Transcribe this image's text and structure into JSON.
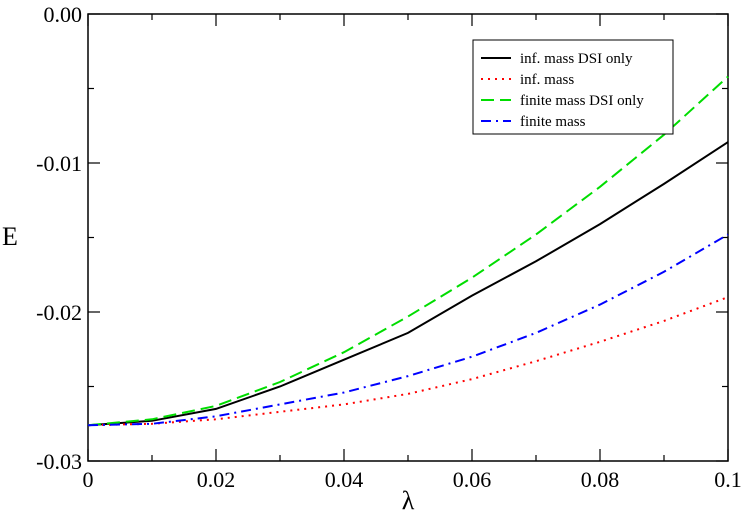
{
  "chart_data": {
    "type": "line",
    "xlabel": "λ",
    "ylabel": "E",
    "xlim": [
      0,
      0.1
    ],
    "ylim": [
      -0.03,
      0.0
    ],
    "x_ticks": [
      0,
      0.02,
      0.04,
      0.06,
      0.08,
      0.1
    ],
    "x_tick_labels": [
      "0",
      "0.02",
      "0.04",
      "0.06",
      "0.08",
      "0.1"
    ],
    "y_ticks": [
      -0.03,
      -0.02,
      -0.01,
      0.0
    ],
    "y_tick_labels": [
      "-0.03",
      "-0.02",
      "-0.01",
      "0.00"
    ],
    "grid": false,
    "legend_position": "top-right",
    "series": [
      {
        "name": "inf. mass DSI only",
        "color": "#000000",
        "dash": "solid",
        "x": [
          0,
          0.01,
          0.02,
          0.03,
          0.04,
          0.05,
          0.06,
          0.07,
          0.08,
          0.09,
          0.1
        ],
        "y": [
          -0.0276,
          -0.0273,
          -0.0265,
          -0.025,
          -0.0232,
          -0.0214,
          -0.0189,
          -0.0166,
          -0.0141,
          -0.0114,
          -0.0086
        ]
      },
      {
        "name": "inf. mass",
        "color": "#ff0000",
        "dash": "dotted",
        "x": [
          0,
          0.01,
          0.02,
          0.03,
          0.04,
          0.05,
          0.06,
          0.07,
          0.08,
          0.09,
          0.1
        ],
        "y": [
          -0.0276,
          -0.0275,
          -0.0272,
          -0.0267,
          -0.0262,
          -0.0255,
          -0.0245,
          -0.0233,
          -0.022,
          -0.0206,
          -0.019
        ]
      },
      {
        "name": "finite mass DSI only",
        "color": "#00dd00",
        "dash": "dashed",
        "x": [
          0,
          0.01,
          0.02,
          0.03,
          0.04,
          0.05,
          0.06,
          0.07,
          0.08,
          0.09,
          0.1
        ],
        "y": [
          -0.0276,
          -0.0272,
          -0.0263,
          -0.0247,
          -0.0227,
          -0.0203,
          -0.0177,
          -0.0148,
          -0.0116,
          -0.0081,
          -0.0042
        ]
      },
      {
        "name": "finite mass",
        "color": "#0000ff",
        "dash": "dashdot",
        "x": [
          0,
          0.01,
          0.02,
          0.03,
          0.04,
          0.05,
          0.06,
          0.07,
          0.08,
          0.09,
          0.1
        ],
        "y": [
          -0.0276,
          -0.0275,
          -0.027,
          -0.0262,
          -0.0254,
          -0.0243,
          -0.023,
          -0.0214,
          -0.0195,
          -0.0173,
          -0.0148
        ]
      }
    ]
  }
}
